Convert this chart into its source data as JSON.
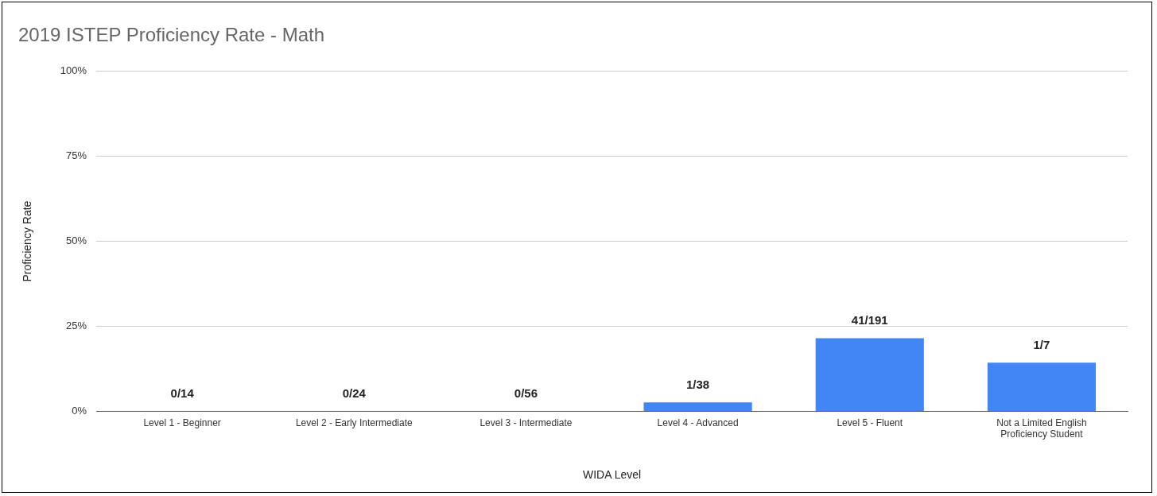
{
  "chart_data": {
    "type": "bar",
    "title": "2019 ISTEP Proficiency Rate - Math",
    "xlabel": "WIDA Level",
    "ylabel": "Proficiency Rate",
    "categories": [
      "Level 1 - Beginner",
      "Level 2 - Early Intermediate",
      "Level 3 - Intermediate",
      "Level 4 - Advanced",
      "Level 5 - Fluent",
      "Not a Limited English Proficiency Student"
    ],
    "values": [
      0,
      0,
      0,
      2.6,
      21.5,
      14.3
    ],
    "value_labels": [
      "0/14",
      "0/24",
      "0/56",
      "1/38",
      "41/191",
      "1/7"
    ],
    "color": "#4285f4",
    "ylim": [
      0,
      100
    ],
    "yticks": [
      {
        "value": 0,
        "label": "0%"
      },
      {
        "value": 25,
        "label": "25%"
      },
      {
        "value": 50,
        "label": "50%"
      },
      {
        "value": 75,
        "label": "75%"
      },
      {
        "value": 100,
        "label": "100%"
      }
    ],
    "grid": "y",
    "legend": false
  }
}
